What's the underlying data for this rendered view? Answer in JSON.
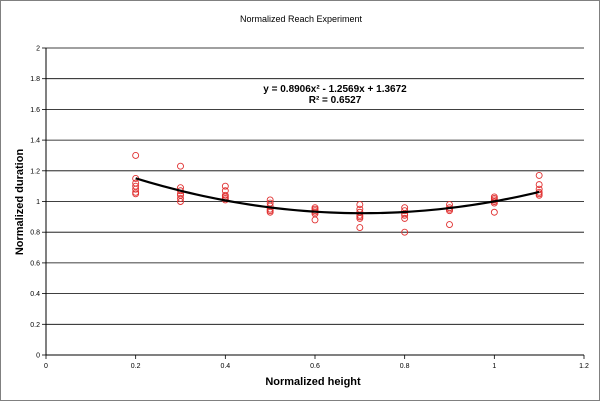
{
  "chart_data": {
    "type": "scatter",
    "title": "Normalized Reach Experiment",
    "xlabel": "Normalized height",
    "ylabel": "Normalized duration",
    "xlim": [
      0,
      1.2
    ],
    "ylim": [
      0,
      2
    ],
    "x_ticks": [
      "0",
      "0.2",
      "0.4",
      "0.6",
      "0.8",
      "1",
      "1.2"
    ],
    "y_ticks": [
      "0",
      "0.2",
      "0.4",
      "0.6",
      "0.8",
      "1",
      "1.2",
      "1.4",
      "1.6",
      "1.8",
      "2"
    ],
    "grid": "horizontal",
    "legend": "none",
    "marker_color": "#e03030",
    "trend_color": "#000000",
    "points": [
      {
        "x": 0.2,
        "y": 1.3
      },
      {
        "x": 0.2,
        "y": 1.15
      },
      {
        "x": 0.2,
        "y": 1.12
      },
      {
        "x": 0.2,
        "y": 1.1
      },
      {
        "x": 0.2,
        "y": 1.08
      },
      {
        "x": 0.2,
        "y": 1.06
      },
      {
        "x": 0.2,
        "y": 1.05
      },
      {
        "x": 0.3,
        "y": 1.23
      },
      {
        "x": 0.3,
        "y": 1.09
      },
      {
        "x": 0.3,
        "y": 1.07
      },
      {
        "x": 0.3,
        "y": 1.05
      },
      {
        "x": 0.3,
        "y": 1.04
      },
      {
        "x": 0.3,
        "y": 1.02
      },
      {
        "x": 0.3,
        "y": 1.0
      },
      {
        "x": 0.4,
        "y": 1.1
      },
      {
        "x": 0.4,
        "y": 1.07
      },
      {
        "x": 0.4,
        "y": 1.04
      },
      {
        "x": 0.4,
        "y": 1.03
      },
      {
        "x": 0.4,
        "y": 1.02
      },
      {
        "x": 0.4,
        "y": 1.01
      },
      {
        "x": 0.5,
        "y": 1.01
      },
      {
        "x": 0.5,
        "y": 0.99
      },
      {
        "x": 0.5,
        "y": 0.97
      },
      {
        "x": 0.5,
        "y": 0.95
      },
      {
        "x": 0.5,
        "y": 0.94
      },
      {
        "x": 0.5,
        "y": 0.93
      },
      {
        "x": 0.6,
        "y": 0.96
      },
      {
        "x": 0.6,
        "y": 0.95
      },
      {
        "x": 0.6,
        "y": 0.94
      },
      {
        "x": 0.6,
        "y": 0.93
      },
      {
        "x": 0.6,
        "y": 0.92
      },
      {
        "x": 0.6,
        "y": 0.88
      },
      {
        "x": 0.7,
        "y": 0.98
      },
      {
        "x": 0.7,
        "y": 0.95
      },
      {
        "x": 0.7,
        "y": 0.93
      },
      {
        "x": 0.7,
        "y": 0.91
      },
      {
        "x": 0.7,
        "y": 0.9
      },
      {
        "x": 0.7,
        "y": 0.89
      },
      {
        "x": 0.7,
        "y": 0.83
      },
      {
        "x": 0.8,
        "y": 0.96
      },
      {
        "x": 0.8,
        "y": 0.94
      },
      {
        "x": 0.8,
        "y": 0.92
      },
      {
        "x": 0.8,
        "y": 0.91
      },
      {
        "x": 0.8,
        "y": 0.89
      },
      {
        "x": 0.8,
        "y": 0.8
      },
      {
        "x": 0.9,
        "y": 0.98
      },
      {
        "x": 0.9,
        "y": 0.96
      },
      {
        "x": 0.9,
        "y": 0.95
      },
      {
        "x": 0.9,
        "y": 0.94
      },
      {
        "x": 0.9,
        "y": 0.85
      },
      {
        "x": 1.0,
        "y": 1.03
      },
      {
        "x": 1.0,
        "y": 1.02
      },
      {
        "x": 1.0,
        "y": 1.01
      },
      {
        "x": 1.0,
        "y": 1.0
      },
      {
        "x": 1.0,
        "y": 0.99
      },
      {
        "x": 1.0,
        "y": 0.93
      },
      {
        "x": 1.1,
        "y": 1.17
      },
      {
        "x": 1.1,
        "y": 1.11
      },
      {
        "x": 1.1,
        "y": 1.08
      },
      {
        "x": 1.1,
        "y": 1.06
      },
      {
        "x": 1.1,
        "y": 1.05
      },
      {
        "x": 1.1,
        "y": 1.04
      }
    ],
    "trendline": {
      "type": "polynomial",
      "coefficients": [
        0.8906,
        -1.2569,
        1.3672
      ],
      "x_range": [
        0.2,
        1.1
      ],
      "equation": "y = 0.8906x² - 1.2569x + 1.3672",
      "r_squared": "R² = 0.6527"
    }
  }
}
